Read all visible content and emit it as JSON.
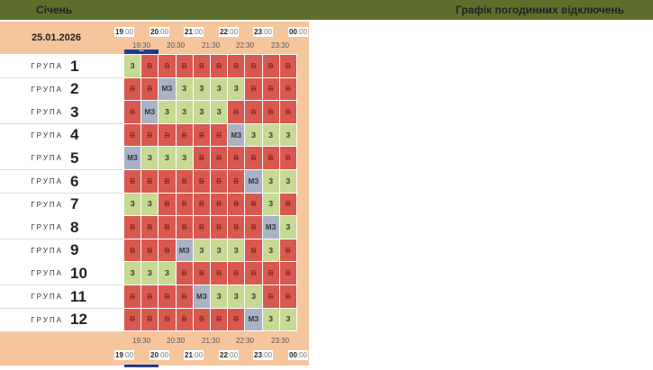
{
  "header": {
    "month": "Січень",
    "title": "Графік погодинних відключень",
    "date": "25.01.2026"
  },
  "hours": [
    {
      "h": "19",
      "m": ":00"
    },
    {
      "h": "20",
      "m": ":00"
    },
    {
      "h": "21",
      "m": ":00"
    },
    {
      "h": "22",
      "m": ":00"
    },
    {
      "h": "23",
      "m": ":00"
    },
    {
      "h": "00",
      "m": ":00"
    }
  ],
  "halves": [
    "19:30",
    "20:30",
    "21:30",
    "22:30",
    "23:30"
  ],
  "dots": "•••",
  "group_word": "ГРУПА",
  "legend_states": {
    "v": "В",
    "z": "З",
    "mz": "МЗ"
  },
  "state_colors": {
    "v": "#d9584f",
    "z": "#c8d994",
    "mz": "#a9b3c5"
  },
  "groups": [
    {
      "num": "1",
      "slots": [
        "z",
        "v",
        "v",
        "v",
        "v",
        "v",
        "v",
        "v",
        "v",
        "v"
      ]
    },
    {
      "num": "2",
      "slots": [
        "v",
        "v",
        "mz",
        "z",
        "z",
        "z",
        "z",
        "v",
        "v",
        "v"
      ]
    },
    {
      "num": "3",
      "slots": [
        "v",
        "mz",
        "z",
        "z",
        "z",
        "z",
        "v",
        "v",
        "v",
        "v"
      ]
    },
    {
      "num": "4",
      "slots": [
        "v",
        "v",
        "v",
        "v",
        "v",
        "v",
        "mz",
        "z",
        "z",
        "z"
      ]
    },
    {
      "num": "5",
      "slots": [
        "mz",
        "z",
        "z",
        "z",
        "v",
        "v",
        "v",
        "v",
        "v",
        "v"
      ]
    },
    {
      "num": "6",
      "slots": [
        "v",
        "v",
        "v",
        "v",
        "v",
        "v",
        "v",
        "mz",
        "z",
        "z"
      ]
    },
    {
      "num": "7",
      "slots": [
        "z",
        "z",
        "v",
        "v",
        "v",
        "v",
        "v",
        "v",
        "z",
        "v"
      ]
    },
    {
      "num": "8",
      "slots": [
        "v",
        "v",
        "v",
        "v",
        "v",
        "v",
        "v",
        "v",
        "mz",
        "z"
      ]
    },
    {
      "num": "9",
      "slots": [
        "v",
        "v",
        "v",
        "mz",
        "z",
        "z",
        "z",
        "v",
        "z",
        "v"
      ]
    },
    {
      "num": "10",
      "slots": [
        "z",
        "z",
        "z",
        "v",
        "v",
        "v",
        "v",
        "v",
        "v",
        "v"
      ]
    },
    {
      "num": "11",
      "slots": [
        "v",
        "v",
        "v",
        "v",
        "mz",
        "z",
        "z",
        "z",
        "v",
        "v"
      ]
    },
    {
      "num": "12",
      "slots": [
        "v",
        "v",
        "v",
        "v",
        "v",
        "v",
        "v",
        "mz",
        "z",
        "z"
      ]
    }
  ]
}
